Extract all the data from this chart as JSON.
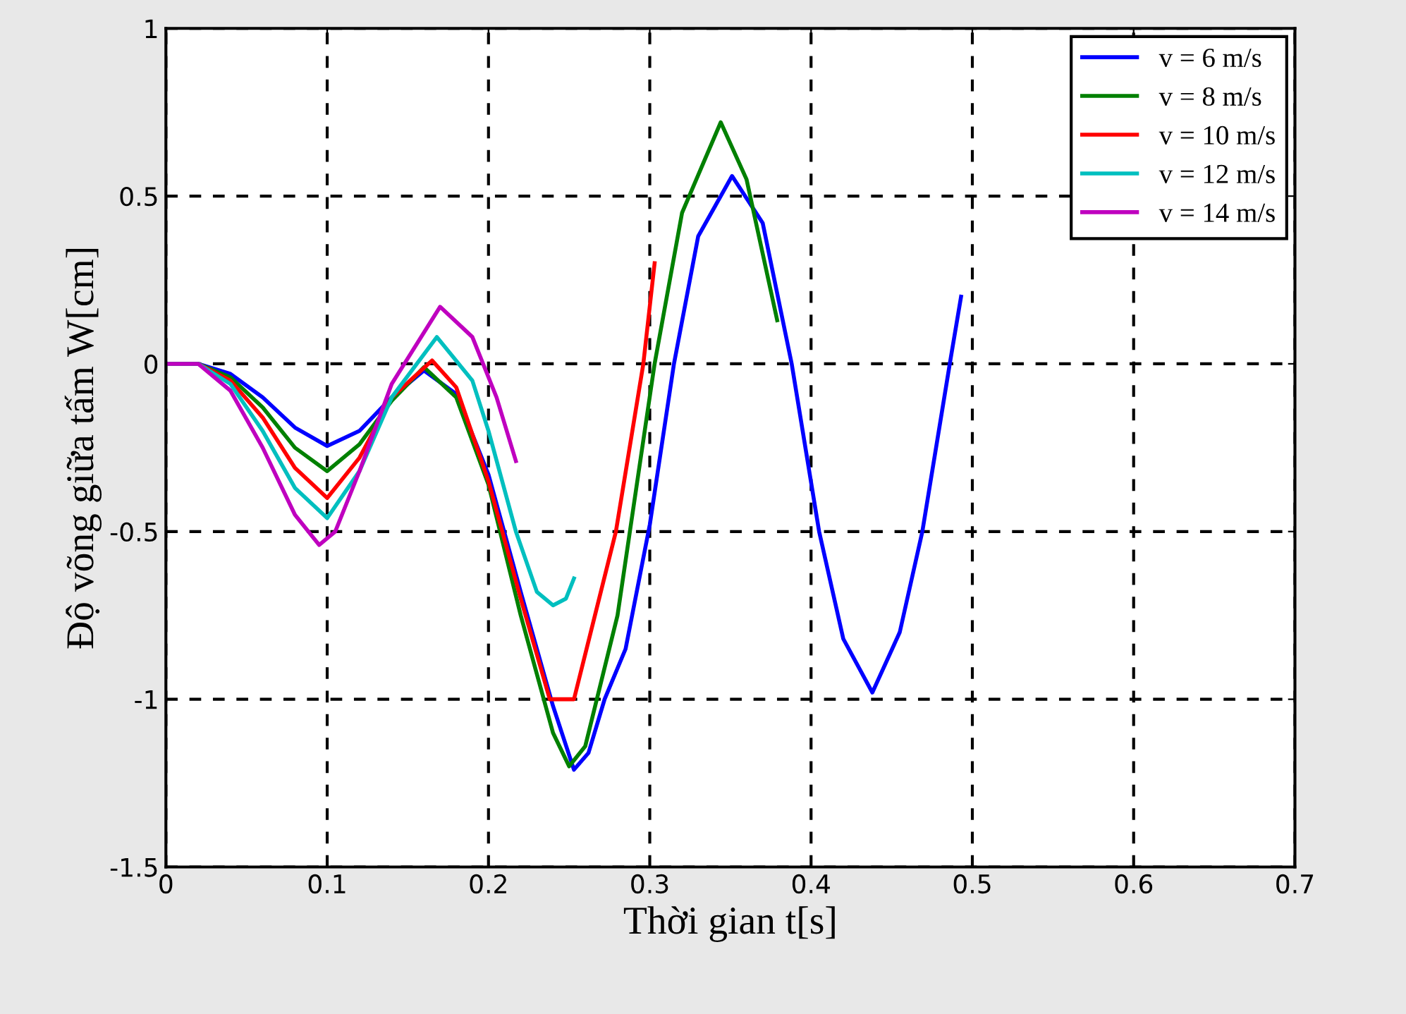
{
  "chart_data": {
    "type": "line",
    "xlabel": "Thời gian t[s]",
    "ylabel": "Độ võng giữa tấm W[cm]",
    "xlim": [
      0,
      0.7
    ],
    "ylim": [
      -1.5,
      1
    ],
    "xticks": [
      0,
      0.1,
      0.2,
      0.3,
      0.4,
      0.5,
      0.6,
      0.7
    ],
    "yticks": [
      -1.5,
      -1,
      -0.5,
      0,
      0.5,
      1
    ],
    "grid": true,
    "legend": "top right",
    "line_style": "solid",
    "marker": "none",
    "series": [
      {
        "name": "v = 6 m/s",
        "color": "#0000ff",
        "x": [
          0,
          0.02,
          0.04,
          0.06,
          0.08,
          0.1,
          0.12,
          0.14,
          0.16,
          0.18,
          0.2,
          0.22,
          0.24,
          0.253,
          0.262,
          0.272,
          0.285,
          0.3,
          0.315,
          0.33,
          0.351,
          0.37,
          0.388,
          0.405,
          0.42,
          0.438,
          0.455,
          0.469,
          0.486,
          0.493
        ],
        "values": [
          0,
          0,
          -0.03,
          -0.1,
          -0.19,
          -0.245,
          -0.2,
          -0.1,
          -0.02,
          -0.09,
          -0.33,
          -0.68,
          -1.02,
          -1.21,
          -1.16,
          -1.0,
          -0.85,
          -0.48,
          0,
          0.38,
          0.56,
          0.42,
          0,
          -0.5,
          -0.82,
          -0.98,
          -0.8,
          -0.5,
          0,
          0.2
        ]
      },
      {
        "name": "v = 8 m/s",
        "color": "#008000",
        "x": [
          0,
          0.02,
          0.04,
          0.06,
          0.08,
          0.1,
          0.12,
          0.14,
          0.16,
          0.18,
          0.2,
          0.22,
          0.24,
          0.25,
          0.26,
          0.28,
          0.303,
          0.32,
          0.344,
          0.36,
          0.379
        ],
        "values": [
          0,
          0,
          -0.04,
          -0.13,
          -0.25,
          -0.32,
          -0.24,
          -0.11,
          -0.01,
          -0.1,
          -0.36,
          -0.75,
          -1.1,
          -1.2,
          -1.14,
          -0.75,
          0,
          0.45,
          0.72,
          0.55,
          0.13
        ]
      },
      {
        "name": "v = 10 m/s",
        "color": "#ff0000",
        "x": [
          0,
          0.02,
          0.04,
          0.06,
          0.08,
          0.1,
          0.12,
          0.14,
          0.165,
          0.18,
          0.2,
          0.22,
          0.238,
          0.253,
          0.266,
          0.279,
          0.296,
          0.303
        ],
        "values": [
          0,
          0,
          -0.05,
          -0.16,
          -0.31,
          -0.4,
          -0.28,
          -0.1,
          0.01,
          -0.07,
          -0.35,
          -0.7,
          -1.0,
          -1.0,
          -0.75,
          -0.5,
          0,
          0.3
        ]
      },
      {
        "name": "v = 12 m/s",
        "color": "#00bfbf",
        "x": [
          0,
          0.02,
          0.04,
          0.06,
          0.08,
          0.1,
          0.12,
          0.14,
          0.168,
          0.19,
          0.2,
          0.217,
          0.23,
          0.24,
          0.248,
          0.253
        ],
        "values": [
          0,
          0,
          -0.06,
          -0.2,
          -0.37,
          -0.46,
          -0.32,
          -0.1,
          0.08,
          -0.05,
          -0.2,
          -0.5,
          -0.68,
          -0.72,
          -0.7,
          -0.64
        ]
      },
      {
        "name": "v = 14 m/s",
        "color": "#bf00bf",
        "x": [
          0,
          0.02,
          0.04,
          0.06,
          0.08,
          0.095,
          0.105,
          0.12,
          0.14,
          0.17,
          0.19,
          0.205,
          0.217
        ],
        "values": [
          0,
          0,
          -0.08,
          -0.25,
          -0.45,
          -0.54,
          -0.5,
          -0.32,
          -0.06,
          0.17,
          0.08,
          -0.1,
          -0.29
        ]
      }
    ]
  }
}
